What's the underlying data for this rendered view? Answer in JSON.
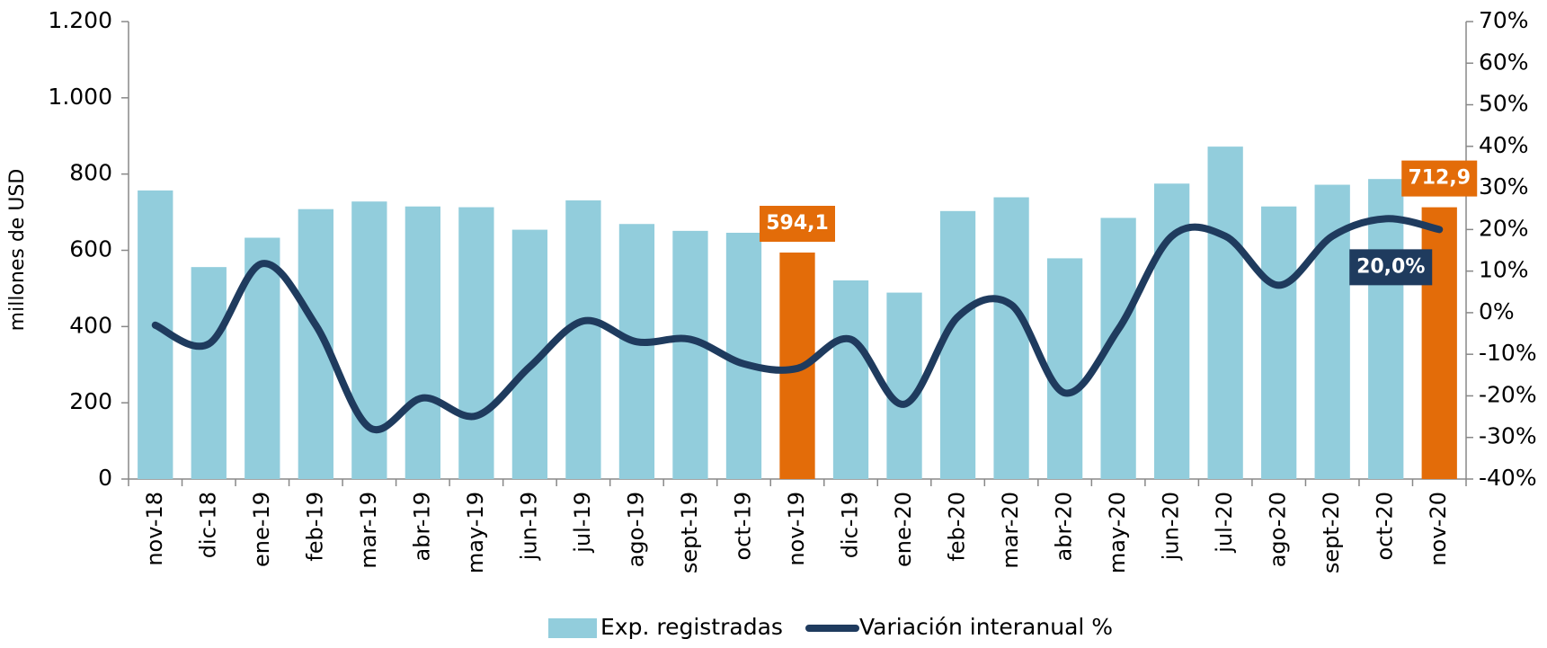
{
  "chart_data": {
    "type": "bar_line",
    "y_label": "millones de USD",
    "categories": [
      "nov-18",
      "dic-18",
      "ene-19",
      "feb-19",
      "mar-19",
      "abr-19",
      "may-19",
      "jun-19",
      "jul-19",
      "ago-19",
      "sept-19",
      "oct-19",
      "nov-19",
      "dic-19",
      "ene-20",
      "feb-20",
      "mar-20",
      "abr-20",
      "may-20",
      "jun-20",
      "jul-20",
      "ago-20",
      "sept-20",
      "oct-20",
      "nov-20"
    ],
    "series": [
      {
        "name": "Exp. registradas",
        "type": "bar",
        "color": "#92cddc",
        "highlight_color": "#e36c09",
        "values": [
          757,
          556,
          633,
          708,
          728,
          715,
          713,
          654,
          731,
          669,
          651,
          646,
          594.1,
          521,
          489,
          703,
          739,
          579,
          685,
          775,
          872,
          715,
          772,
          787,
          712.9
        ],
        "value_labels": [
          null,
          null,
          null,
          null,
          null,
          null,
          null,
          null,
          null,
          null,
          null,
          null,
          "594,1",
          null,
          null,
          null,
          null,
          null,
          null,
          null,
          null,
          null,
          null,
          null,
          "712,9"
        ]
      },
      {
        "name": "Variación interanual %",
        "type": "line",
        "axis": "y2",
        "color": "#1f3b5e",
        "values": [
          -3,
          -7.5,
          11.8,
          -3,
          -27.6,
          -20.5,
          -24.8,
          -13,
          -2,
          -7,
          -6.4,
          -12.3,
          -13.4,
          -6.4,
          -22,
          -1,
          1.9,
          -19.3,
          -4,
          18.4,
          18.4,
          6.6,
          18.4,
          22.6,
          20.0
        ],
        "value_labels": [
          null,
          null,
          null,
          null,
          null,
          null,
          null,
          null,
          null,
          null,
          null,
          null,
          null,
          null,
          null,
          null,
          null,
          null,
          null,
          null,
          null,
          null,
          null,
          null,
          "20,0%"
        ]
      }
    ],
    "ylim": [
      0,
      1200
    ],
    "yticks": [
      0,
      200,
      400,
      600,
      800,
      {
        "value": 1000,
        "label": "1.000"
      },
      {
        "value": 1200,
        "label": "1.200"
      }
    ],
    "y2lim": [
      -40,
      70
    ],
    "y2ticks": [
      {
        "value": -40,
        "label": "-40%"
      },
      {
        "value": -30,
        "label": "-30%"
      },
      {
        "value": -20,
        "label": "-20%"
      },
      {
        "value": -10,
        "label": "-10%"
      },
      {
        "value": 0,
        "label": "0%"
      },
      {
        "value": 10,
        "label": "10%"
      },
      {
        "value": 20,
        "label": "20%"
      },
      {
        "value": 30,
        "label": "30%"
      },
      {
        "value": 40,
        "label": "40%"
      },
      {
        "value": 50,
        "label": "50%"
      },
      {
        "value": 60,
        "label": "60%"
      },
      {
        "value": 70,
        "label": "70%"
      }
    ],
    "legend": "bottom"
  }
}
